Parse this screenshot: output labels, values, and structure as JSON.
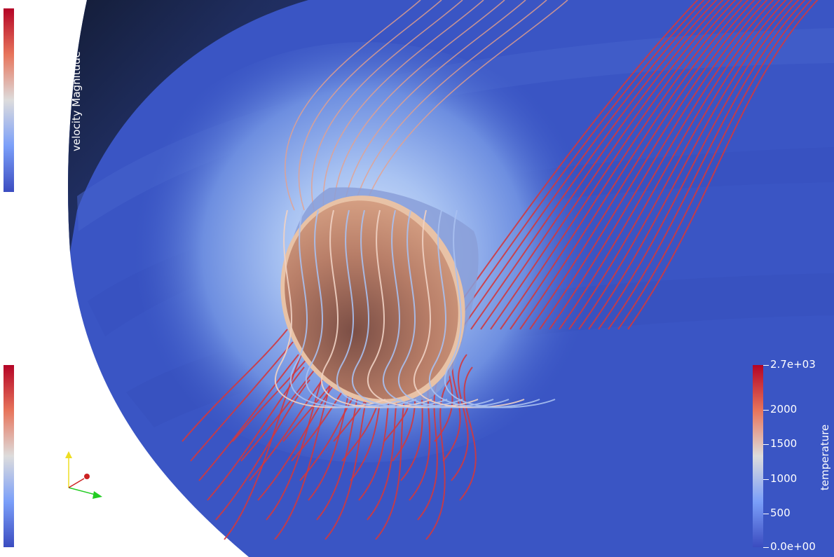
{
  "view": {
    "background": "#ffffff",
    "domain_color": "#3a55c4",
    "body_color": "#c98a70",
    "streamline_hot": "#d0393f",
    "streamline_cold": "#a9c0f0"
  },
  "colormap": {
    "name": "Cool to Warm",
    "stops": [
      "#3b4cc0",
      "#7b9ff9",
      "#dddcdc",
      "#e7745b",
      "#b40426"
    ]
  },
  "temperature_bar": {
    "title": "temperature",
    "labels": [
      "2.7e+03",
      "2000",
      "1500",
      "1000",
      "500",
      "0.0e+00"
    ]
  },
  "velocity_bar": {
    "title": "velocity Magnitude"
  },
  "orientation_axes": {
    "icon": "xyz-axes-icon",
    "x_color": "#22cc22",
    "y_color": "#eedd22",
    "z_color": "#cc2222"
  }
}
